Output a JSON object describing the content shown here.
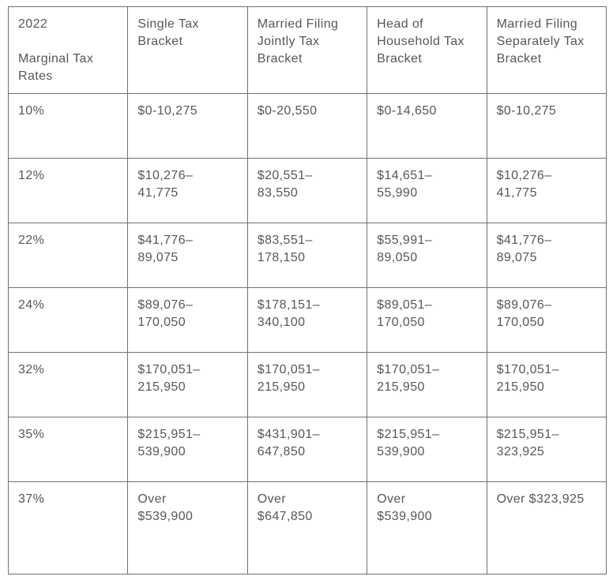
{
  "theme": {
    "background": "#ffffff",
    "border_color": "#6f7072",
    "text_color": "#56575b"
  },
  "table": {
    "header": {
      "rates": "2022\n\nMarginal Tax\nRates",
      "single": "Single Tax\nBracket",
      "married_jointly": "Married Filing\nJointly Tax\nBracket",
      "head_household": "Head of\nHousehold Tax\nBracket",
      "married_separately": "Married Filing\nSeparately Tax\nBracket"
    },
    "rows": [
      {
        "rate": "10%",
        "single": "$0-10,275",
        "married_jointly": "$0-20,550",
        "head_household": "$0-14,650",
        "married_separately": "$0-10,275"
      },
      {
        "rate": "12%",
        "single": "$10,276–\n41,775",
        "married_jointly": "$20,551–\n83,550",
        "head_household": "$14,651–\n55,990",
        "married_separately": "$10,276–\n41,775"
      },
      {
        "rate": "22%",
        "single": "$41,776–\n89,075",
        "married_jointly": "$83,551–\n178,150",
        "head_household": "$55,991–\n89,050",
        "married_separately": "$41,776–\n89,075"
      },
      {
        "rate": "24%",
        "single": "$89,076–\n170,050",
        "married_jointly": "$178,151–\n340,100",
        "head_household": "$89,051–\n170,050",
        "married_separately": "$89,076–\n170,050"
      },
      {
        "rate": "32%",
        "single": "$170,051–\n215,950",
        "married_jointly": "$170,051–\n215,950",
        "head_household": "$170,051–\n215,950",
        "married_separately": "$170,051–\n215,950"
      },
      {
        "rate": "35%",
        "single": "$215,951–\n539,900",
        "married_jointly": "$431,901–\n647,850",
        "head_household": "$215,951–\n539,900",
        "married_separately": "$215,951–\n323,925"
      },
      {
        "rate": "37%",
        "single": "Over\n$539,900",
        "married_jointly": "Over\n$647,850",
        "head_household": "Over\n$539,900",
        "married_separately": "Over $323,925"
      }
    ]
  },
  "chart_data": {
    "type": "table",
    "title": "2022 Marginal Tax Rates",
    "columns": [
      "2022 Marginal Tax Rates",
      "Single Tax Bracket",
      "Married Filing Jointly Tax Bracket",
      "Head of Household Tax Bracket",
      "Married Filing Separately Tax Bracket"
    ],
    "rows": [
      [
        "10%",
        "$0-10,275",
        "$0-20,550",
        "$0-14,650",
        "$0-10,275"
      ],
      [
        "12%",
        "$10,276–41,775",
        "$20,551–83,550",
        "$14,651–55,990",
        "$10,276–41,775"
      ],
      [
        "22%",
        "$41,776–89,075",
        "$83,551–178,150",
        "$55,991–89,050",
        "$41,776–89,075"
      ],
      [
        "24%",
        "$89,076–170,050",
        "$178,151–340,100",
        "$89,051–170,050",
        "$89,076–170,050"
      ],
      [
        "32%",
        "$170,051–215,950",
        "$170,051–215,950",
        "$170,051–215,950",
        "$170,051–215,950"
      ],
      [
        "35%",
        "$215,951–539,900",
        "$431,901–647,850",
        "$215,951–539,900",
        "$215,951–323,925"
      ],
      [
        "37%",
        "Over $539,900",
        "Over $647,850",
        "Over $539,900",
        "Over $323,925"
      ]
    ],
    "layout": {
      "grid": true,
      "header_row": true,
      "columns_equal_width": true
    }
  }
}
